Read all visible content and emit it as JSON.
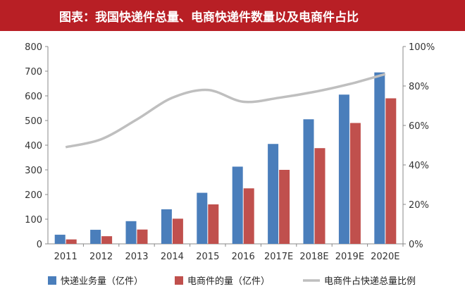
{
  "chart_data": {
    "type": "bar",
    "title": "图表：我国快递件总量、电商快递件数量以及电商件占比",
    "categories": [
      "2011",
      "2012",
      "2013",
      "2014",
      "2015",
      "2016",
      "2017E",
      "2018E",
      "2019E",
      "2020E"
    ],
    "series": [
      {
        "name": "快递业务量（亿件）",
        "type": "bar",
        "axis": "left",
        "color": "#4a7ebb",
        "values": [
          37,
          57,
          92,
          140,
          207,
          313,
          405,
          505,
          605,
          695
        ]
      },
      {
        "name": "电商件的量（亿件）",
        "type": "bar",
        "axis": "left",
        "color": "#c0504d",
        "values": [
          18,
          31,
          58,
          102,
          160,
          225,
          300,
          388,
          490,
          590
        ]
      },
      {
        "name": "电商件占快递总量比例",
        "type": "line",
        "axis": "right",
        "color": "#bfbfbf",
        "values": [
          0.49,
          0.53,
          0.63,
          0.74,
          0.78,
          0.72,
          0.74,
          0.77,
          0.81,
          0.86
        ]
      }
    ],
    "ylim": [
      0,
      800
    ],
    "yticks": [
      "0",
      "100",
      "200",
      "300",
      "400",
      "500",
      "600",
      "700",
      "800"
    ],
    "y2lim": [
      0,
      1
    ],
    "y2ticks": [
      "0%",
      "20%",
      "40%",
      "60%",
      "80%",
      "100%"
    ],
    "grid": false,
    "legend_position": "bottom"
  }
}
